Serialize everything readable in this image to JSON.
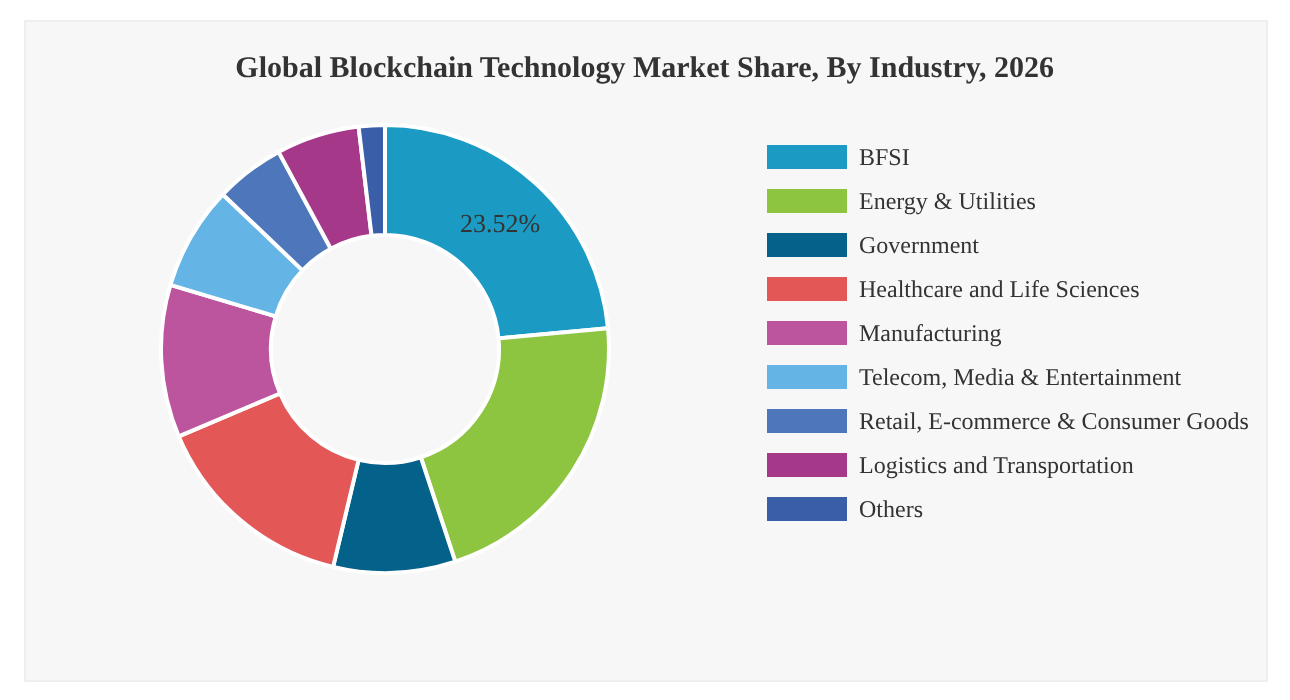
{
  "chart_data": {
    "type": "donut",
    "title": "Global Blockchain Technology Market Share, By Industry, 2026",
    "categories": [
      "BFSI",
      "Energy & Utilities",
      "Government",
      "Healthcare and Life Sciences",
      "Manufacturing",
      "Telecom, Media & Entertainment",
      "Retail, E-commerce & Consumer Goods",
      "Logistics and Transportation",
      "Others"
    ],
    "values": [
      23.52,
      21.4,
      8.8,
      14.9,
      11.0,
      7.5,
      5.0,
      6.0,
      1.88
    ],
    "colors": [
      "#1b9bc3",
      "#8dc540",
      "#046189",
      "#e35757",
      "#bd559e",
      "#64b5e5",
      "#4e76bb",
      "#a6388a",
      "#3b5ea8"
    ],
    "value_labels": [
      "23.52%",
      null,
      null,
      null,
      null,
      null,
      null,
      null,
      null
    ],
    "legend": "right"
  }
}
